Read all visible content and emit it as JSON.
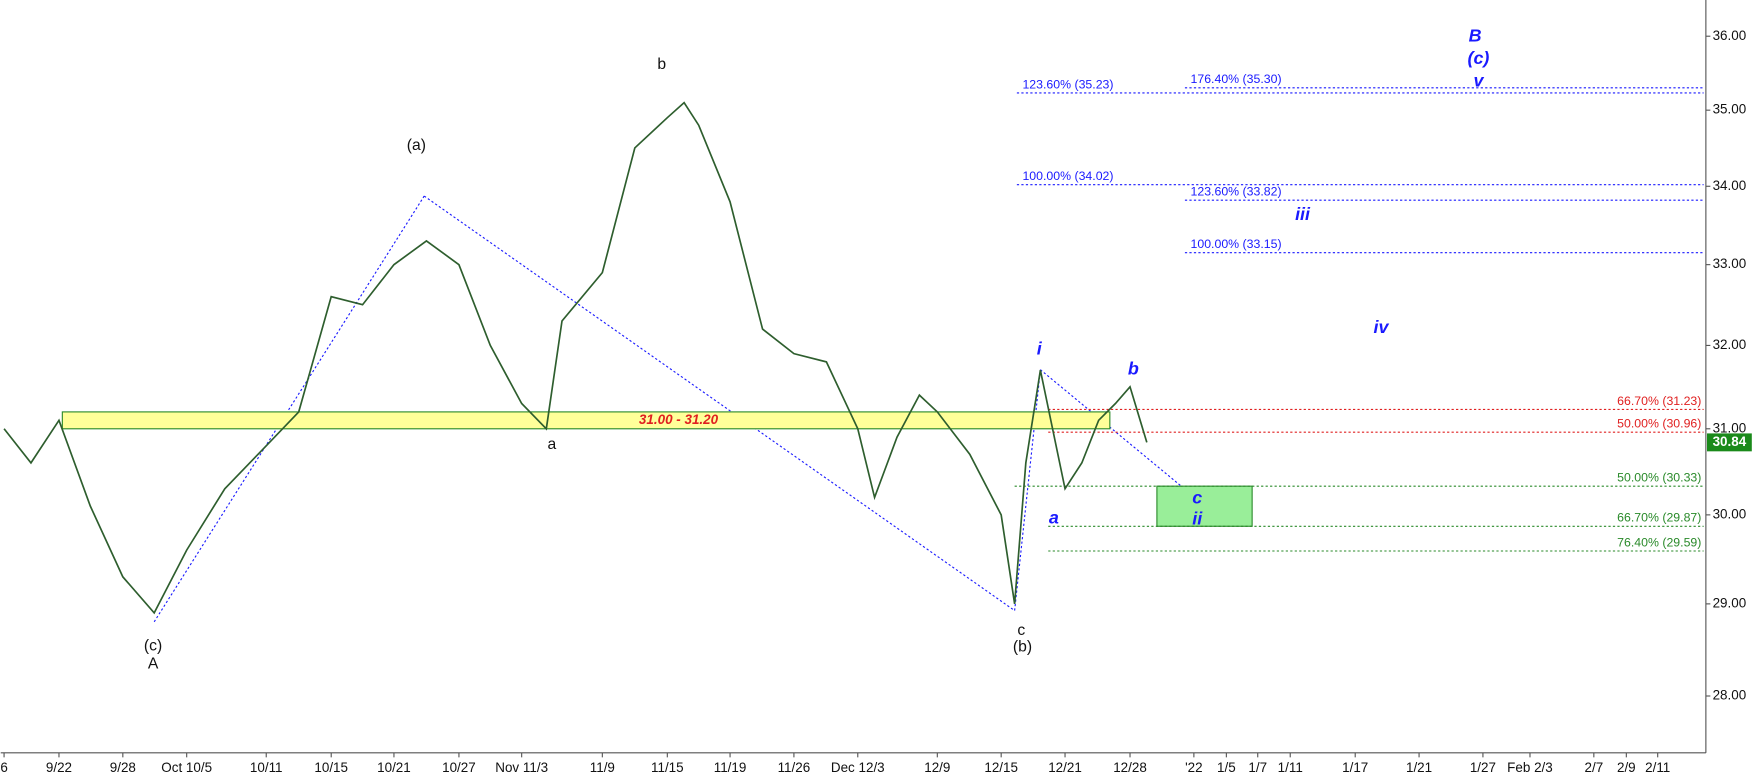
{
  "chart_data": {
    "type": "line",
    "log_y": true,
    "ylim": [
      27.4,
      36.5
    ],
    "yticks": [
      {
        "value": 28,
        "label": "28.00"
      },
      {
        "value": 29,
        "label": "29.00"
      },
      {
        "value": 30,
        "label": "30.00"
      },
      {
        "value": 31,
        "label": "31.00"
      },
      {
        "value": 32,
        "label": "32.00"
      },
      {
        "value": 33,
        "label": "33.00"
      },
      {
        "value": 34,
        "label": "34.00"
      },
      {
        "value": 35,
        "label": "35.00"
      },
      {
        "value": 36,
        "label": "36.00"
      }
    ],
    "categories": [
      "6",
      null,
      "9/22",
      null,
      "9/28",
      null,
      "Oct 10/5",
      null,
      "10/11",
      null,
      "10/15",
      null,
      "10/21",
      null,
      "10/27",
      null,
      "Nov 11/3",
      null,
      null,
      "11/9",
      null,
      "11/15",
      null,
      null,
      "11/19",
      null,
      "11/26",
      null,
      "Dec 12/3",
      null,
      null,
      null,
      "12/9",
      null,
      "12/15",
      null,
      null,
      null,
      "12/21",
      null,
      null,
      null,
      "12/28",
      null,
      "'22",
      "1/5",
      "1/7",
      "1/11",
      "1/17",
      "1/21",
      "1/27",
      "Feb  2/3",
      "2/7",
      "2/9",
      "2/11"
    ],
    "values": [
      31.0,
      30.6,
      31.1,
      30.1,
      29.3,
      28.9,
      29.6,
      30.3,
      30.8,
      31.2,
      32.6,
      32.5,
      33.0,
      33.3,
      33.0,
      32.0,
      31.3,
      31.0,
      32.3,
      32.9,
      34.5,
      34.9,
      35.1,
      34.8,
      33.8,
      32.2,
      31.9,
      31.8,
      31.0,
      30.2,
      30.9,
      31.4,
      31.2,
      30.7,
      30.0,
      29.0,
      30.6,
      31.7,
      30.3,
      30.6,
      31.1,
      31.3,
      31.5,
      30.84,
      null,
      null,
      null,
      null,
      null,
      null,
      null,
      null,
      null,
      null,
      null
    ],
    "color": "#2e5e2e",
    "last_price": {
      "value": 30.84,
      "color": "#1a8a1a"
    },
    "zone": {
      "label": "31.00 - 31.20",
      "range": [
        31.0,
        31.2
      ],
      "color": "#ffff99"
    },
    "target_box": {
      "range": [
        29.87,
        30.33
      ],
      "color": "#99ee99"
    },
    "fib_levels": [
      {
        "label": "123.60% (35.23)",
        "value": 35.23,
        "color": "#1a1aff"
      },
      {
        "label": "176.40% (35.30)",
        "value": 35.3,
        "color": "#1a1aff"
      },
      {
        "label": "100.00% (34.02)",
        "value": 34.02,
        "color": "#1a1aff"
      },
      {
        "label": "123.60% (33.82)",
        "value": 33.82,
        "color": "#1a1aff"
      },
      {
        "label": "100.00% (33.15)",
        "value": 33.15,
        "color": "#1a1aff"
      },
      {
        "label": "66.70% (31.23)",
        "value": 31.23,
        "color": "#e02020"
      },
      {
        "label": "50.00% (30.96)",
        "value": 30.96,
        "color": "#e02020"
      },
      {
        "label": "50.00% (30.33)",
        "value": 30.33,
        "color": "#2a8a2a"
      },
      {
        "label": "66.70% (29.87)",
        "value": 29.87,
        "color": "#2a8a2a"
      },
      {
        "label": "76.40% (29.59)",
        "value": 29.59,
        "color": "#2a8a2a"
      }
    ],
    "wave_labels": [
      "(c)",
      "A",
      "(a)",
      "a",
      "b",
      "c",
      "(b)",
      "i",
      "a",
      "b",
      "c",
      "ii",
      "iii",
      "iv",
      "B",
      "(c)",
      "v"
    ]
  }
}
